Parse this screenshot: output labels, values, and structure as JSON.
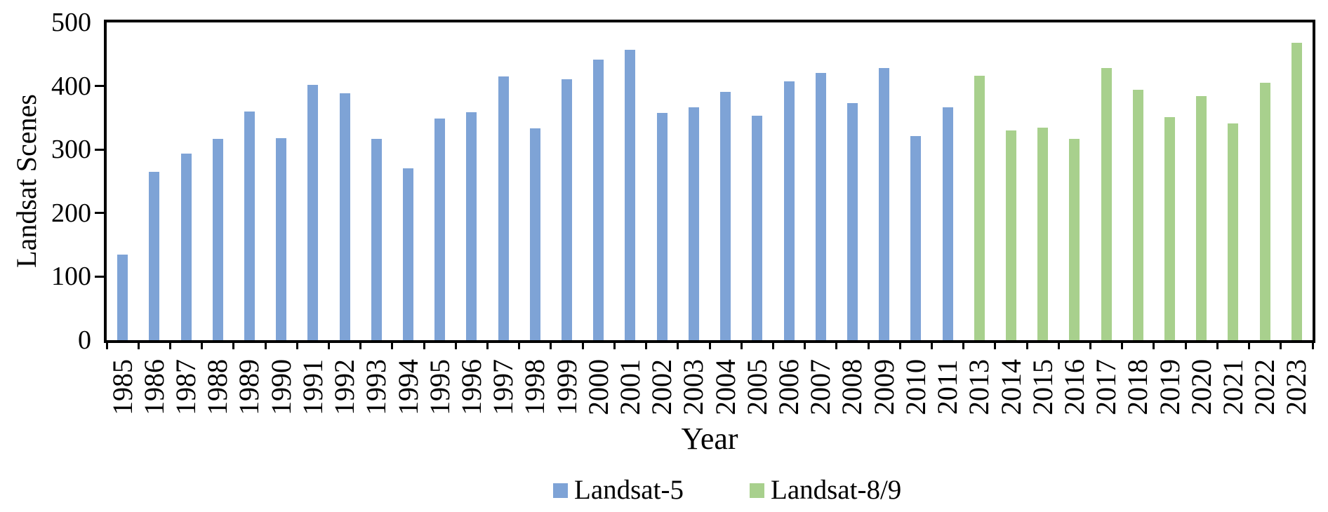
{
  "chart_data": {
    "type": "bar",
    "title": "",
    "xlabel": "Year",
    "ylabel": "Landsat Scenes",
    "categories": [
      "1985",
      "1986",
      "1987",
      "1988",
      "1989",
      "1990",
      "1991",
      "1992",
      "1993",
      "1994",
      "1995",
      "1996",
      "1997",
      "1998",
      "1999",
      "2000",
      "2001",
      "2002",
      "2003",
      "2004",
      "2005",
      "2006",
      "2007",
      "2008",
      "2009",
      "2010",
      "2011",
      "2013",
      "2014",
      "2015",
      "2016",
      "2017",
      "2018",
      "2019",
      "2020",
      "2021",
      "2022",
      "2023"
    ],
    "series": [
      {
        "name": "Landsat-5",
        "color": "#7EA3D6",
        "categories": [
          "1985",
          "1986",
          "1987",
          "1988",
          "1989",
          "1990",
          "1991",
          "1992",
          "1993",
          "1994",
          "1995",
          "1996",
          "1997",
          "1998",
          "1999",
          "2000",
          "2001",
          "2002",
          "2003",
          "2004",
          "2005",
          "2006",
          "2007",
          "2008",
          "2009",
          "2010",
          "2011"
        ],
        "values": [
          135,
          265,
          294,
          317,
          360,
          318,
          402,
          389,
          317,
          270,
          349,
          359,
          415,
          333,
          411,
          441,
          457,
          358,
          366,
          391,
          353,
          407,
          421,
          373,
          428,
          321,
          366
        ]
      },
      {
        "name": "Landsat-8/9",
        "color": "#A8D08D",
        "categories": [
          "2013",
          "2014",
          "2015",
          "2016",
          "2017",
          "2018",
          "2019",
          "2020",
          "2021",
          "2022",
          "2023"
        ],
        "values": [
          416,
          330,
          334,
          317,
          428,
          394,
          351,
          384,
          341,
          405,
          468
        ]
      }
    ],
    "ylim": [
      0,
      500
    ],
    "yticks": [
      "0",
      "100",
      "200",
      "300",
      "400",
      "500"
    ],
    "grid": false,
    "legend_position": "bottom"
  }
}
